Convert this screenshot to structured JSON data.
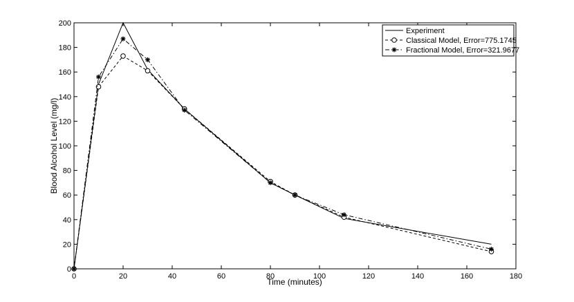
{
  "chart_data": {
    "type": "line",
    "title": "",
    "xlabel": "Time (minutes)",
    "ylabel": "Blood Alcohol Level (mg/l)",
    "xlim": [
      0,
      180
    ],
    "ylim": [
      0,
      200
    ],
    "xticks": [
      0,
      20,
      40,
      60,
      80,
      100,
      120,
      140,
      160,
      180
    ],
    "yticks": [
      0,
      20,
      40,
      60,
      80,
      100,
      120,
      140,
      160,
      180,
      200
    ],
    "grid": false,
    "legend_position": "top-right",
    "series": [
      {
        "name": "Experiment",
        "style": "solid",
        "marker": "none",
        "x": [
          0,
          10,
          20,
          30,
          45,
          80,
          90,
          110,
          170
        ],
        "y": [
          0,
          150,
          200,
          162,
          130,
          70,
          60,
          41,
          20
        ]
      },
      {
        "name": "Classical Model, Error=775.1745",
        "style": "dashed",
        "marker": "circle",
        "x": [
          0,
          10,
          20,
          30,
          45,
          80,
          90,
          110,
          170
        ],
        "y": [
          0,
          148,
          173,
          161,
          130,
          71,
          60,
          42,
          14
        ]
      },
      {
        "name": "Fractional Model, Error=321.9677",
        "style": "dashdot",
        "marker": "star",
        "x": [
          0,
          10,
          20,
          30,
          45,
          80,
          90,
          110,
          170
        ],
        "y": [
          0,
          156,
          187,
          170,
          129,
          70,
          60,
          44,
          16
        ]
      }
    ]
  }
}
